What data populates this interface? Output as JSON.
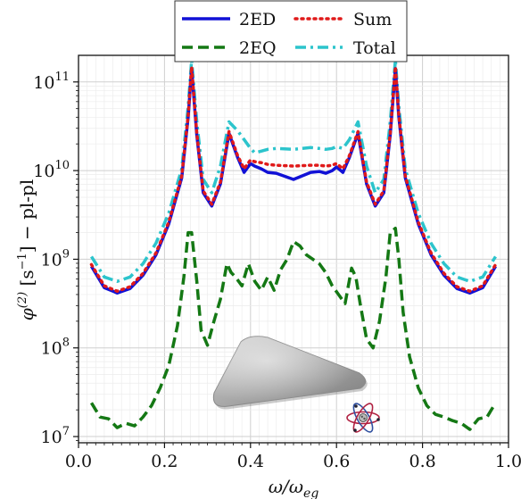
{
  "chart_data": {
    "type": "line",
    "xlabel": "ω/ω_eg",
    "ylabel": "φ(2) [s−1] − pl-pl",
    "xlim": [
      0.0,
      1.0
    ],
    "ylim_log10": [
      6.93,
      11.3
    ],
    "y_scale": "log",
    "grid": "on",
    "x_ticks": [
      "0.0",
      "0.2",
      "0.4",
      "0.6",
      "0.8",
      "1.0"
    ],
    "y_ticks": [
      {
        "base": "10",
        "exp": "7",
        "value": 7
      },
      {
        "base": "10",
        "exp": "8",
        "value": 8
      },
      {
        "base": "10",
        "exp": "9",
        "value": 9
      },
      {
        "base": "10",
        "exp": "10",
        "value": 10
      },
      {
        "base": "10",
        "exp": "11",
        "value": 11
      }
    ],
    "legend": {
      "placement": "top-center",
      "entries": [
        "2ED",
        "Sum",
        "2EQ",
        "Total"
      ]
    },
    "series": [
      {
        "name": "2ED",
        "color": "#1111d6",
        "dash": "solid",
        "x": [
          0.03,
          0.06,
          0.09,
          0.12,
          0.15,
          0.18,
          0.21,
          0.24,
          0.255,
          0.263,
          0.275,
          0.29,
          0.31,
          0.33,
          0.35,
          0.37,
          0.385,
          0.4,
          0.41,
          0.425,
          0.44,
          0.46,
          0.5,
          0.54,
          0.56,
          0.575,
          0.59,
          0.6,
          0.615,
          0.63,
          0.65,
          0.67,
          0.69,
          0.71,
          0.725,
          0.737,
          0.745,
          0.76,
          0.79,
          0.82,
          0.85,
          0.88,
          0.91,
          0.94,
          0.97
        ],
        "log10": [
          8.92,
          8.68,
          8.62,
          8.67,
          8.82,
          9.05,
          9.4,
          9.92,
          10.6,
          11.15,
          10.4,
          9.75,
          9.6,
          9.85,
          10.42,
          10.15,
          9.98,
          10.08,
          10.05,
          10.02,
          9.98,
          9.97,
          9.9,
          9.98,
          9.99,
          9.97,
          10.0,
          10.04,
          9.98,
          10.15,
          10.42,
          9.85,
          9.6,
          9.75,
          10.4,
          11.15,
          10.6,
          9.92,
          9.4,
          9.05,
          8.82,
          8.67,
          8.62,
          8.68,
          8.92
        ]
      },
      {
        "name": "Sum",
        "color": "#e01a1a",
        "dash": "dotted",
        "x": [
          0.03,
          0.06,
          0.09,
          0.12,
          0.15,
          0.18,
          0.21,
          0.24,
          0.255,
          0.263,
          0.275,
          0.29,
          0.31,
          0.33,
          0.35,
          0.37,
          0.385,
          0.4,
          0.41,
          0.425,
          0.44,
          0.46,
          0.5,
          0.54,
          0.56,
          0.575,
          0.59,
          0.6,
          0.615,
          0.63,
          0.65,
          0.67,
          0.69,
          0.71,
          0.725,
          0.737,
          0.745,
          0.76,
          0.79,
          0.82,
          0.85,
          0.88,
          0.91,
          0.94,
          0.97
        ],
        "log10": [
          8.94,
          8.7,
          8.64,
          8.69,
          8.84,
          9.07,
          9.42,
          9.94,
          10.62,
          11.17,
          10.42,
          9.77,
          9.62,
          9.87,
          10.44,
          10.17,
          10.02,
          10.12,
          10.1,
          10.09,
          10.07,
          10.06,
          10.05,
          10.06,
          10.06,
          10.05,
          10.06,
          10.08,
          10.02,
          10.17,
          10.44,
          9.87,
          9.62,
          9.77,
          10.42,
          11.17,
          10.62,
          9.94,
          9.42,
          9.07,
          8.84,
          8.69,
          8.64,
          8.7,
          8.94
        ]
      },
      {
        "name": "2EQ",
        "color": "#147814",
        "dash": "dashed",
        "x": [
          0.03,
          0.05,
          0.07,
          0.09,
          0.11,
          0.13,
          0.15,
          0.17,
          0.19,
          0.21,
          0.23,
          0.245,
          0.255,
          0.263,
          0.275,
          0.285,
          0.3,
          0.315,
          0.33,
          0.345,
          0.355,
          0.365,
          0.38,
          0.395,
          0.41,
          0.425,
          0.44,
          0.455,
          0.47,
          0.485,
          0.5,
          0.515,
          0.53,
          0.545,
          0.56,
          0.575,
          0.59,
          0.605,
          0.62,
          0.635,
          0.645,
          0.655,
          0.67,
          0.685,
          0.7,
          0.715,
          0.725,
          0.737,
          0.745,
          0.755,
          0.77,
          0.79,
          0.81,
          0.83,
          0.85,
          0.87,
          0.89,
          0.91,
          0.93,
          0.95,
          0.97
        ],
        "log10": [
          7.38,
          7.22,
          7.2,
          7.1,
          7.15,
          7.12,
          7.22,
          7.35,
          7.55,
          7.8,
          8.25,
          8.8,
          9.3,
          9.3,
          8.75,
          8.2,
          8.03,
          8.3,
          8.55,
          8.95,
          8.85,
          8.8,
          8.7,
          8.95,
          8.75,
          8.65,
          8.8,
          8.65,
          8.88,
          9.0,
          9.2,
          9.15,
          9.05,
          9.0,
          8.95,
          8.85,
          8.7,
          8.6,
          8.5,
          8.9,
          8.8,
          8.5,
          8.1,
          8.0,
          8.3,
          8.8,
          9.3,
          9.35,
          9.0,
          8.4,
          7.9,
          7.55,
          7.35,
          7.25,
          7.22,
          7.18,
          7.15,
          7.08,
          7.2,
          7.22,
          7.38
        ]
      },
      {
        "name": "Total",
        "color": "#2cc4cc",
        "dash": "dashdot",
        "x": [
          0.03,
          0.06,
          0.09,
          0.12,
          0.15,
          0.18,
          0.21,
          0.24,
          0.255,
          0.263,
          0.275,
          0.29,
          0.31,
          0.33,
          0.35,
          0.37,
          0.385,
          0.4,
          0.41,
          0.425,
          0.44,
          0.46,
          0.5,
          0.54,
          0.56,
          0.575,
          0.59,
          0.6,
          0.615,
          0.63,
          0.65,
          0.67,
          0.69,
          0.71,
          0.725,
          0.737,
          0.745,
          0.76,
          0.79,
          0.82,
          0.85,
          0.88,
          0.91,
          0.94,
          0.97
        ],
        "log10": [
          9.03,
          8.8,
          8.75,
          8.8,
          8.95,
          9.18,
          9.52,
          10.02,
          10.72,
          11.25,
          10.55,
          9.9,
          9.75,
          10.05,
          10.55,
          10.45,
          10.35,
          10.25,
          10.2,
          10.22,
          10.24,
          10.25,
          10.24,
          10.26,
          10.25,
          10.24,
          10.25,
          10.27,
          10.25,
          10.35,
          10.55,
          10.05,
          9.75,
          9.9,
          10.55,
          11.25,
          10.72,
          10.02,
          9.52,
          9.18,
          8.95,
          8.8,
          8.75,
          8.8,
          9.03
        ]
      }
    ]
  }
}
